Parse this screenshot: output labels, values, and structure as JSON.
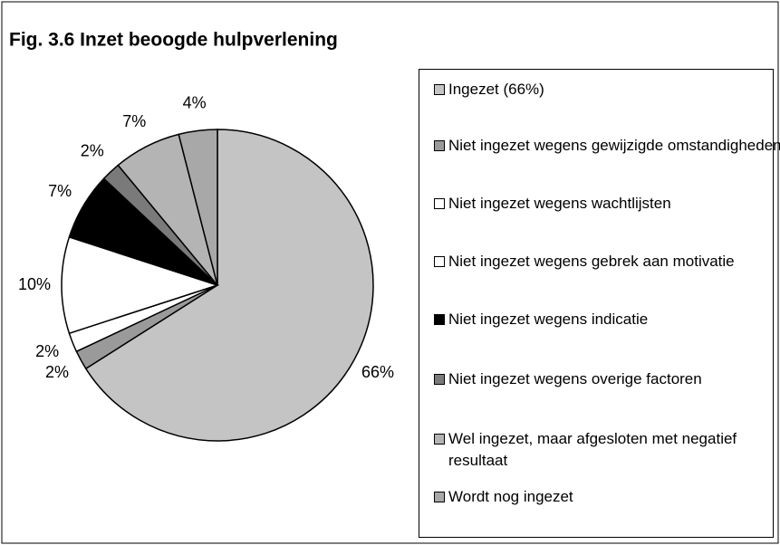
{
  "chart_data": {
    "type": "pie",
    "title": "Fig. 3.6 Inzet beoogde hulpverlening",
    "categories": [
      "Ingezet (66%)",
      "Niet ingezet wegens gewijzigde omstandigheden",
      "Niet ingezet wegens wachtlijsten",
      "Niet ingezet wegens gebrek aan motivatie",
      "Niet ingezet wegens indicatie",
      "Niet ingezet wegens overige factoren",
      "Wel ingezet, maar afgesloten met negatief resultaat",
      "Wordt nog ingezet"
    ],
    "values": [
      66,
      2,
      2,
      10,
      7,
      2,
      7,
      4
    ],
    "value_labels": [
      "66%",
      "2%",
      "2%",
      "10%",
      "7%",
      "2%",
      "7%",
      "4%"
    ],
    "colors": [
      "#c4c4c4",
      "#9a9a9a",
      "#ffffff",
      "#ffffff",
      "#000000",
      "#7a7a7a",
      "#b4b4b4",
      "#a8a8a8"
    ],
    "legend": "right"
  }
}
